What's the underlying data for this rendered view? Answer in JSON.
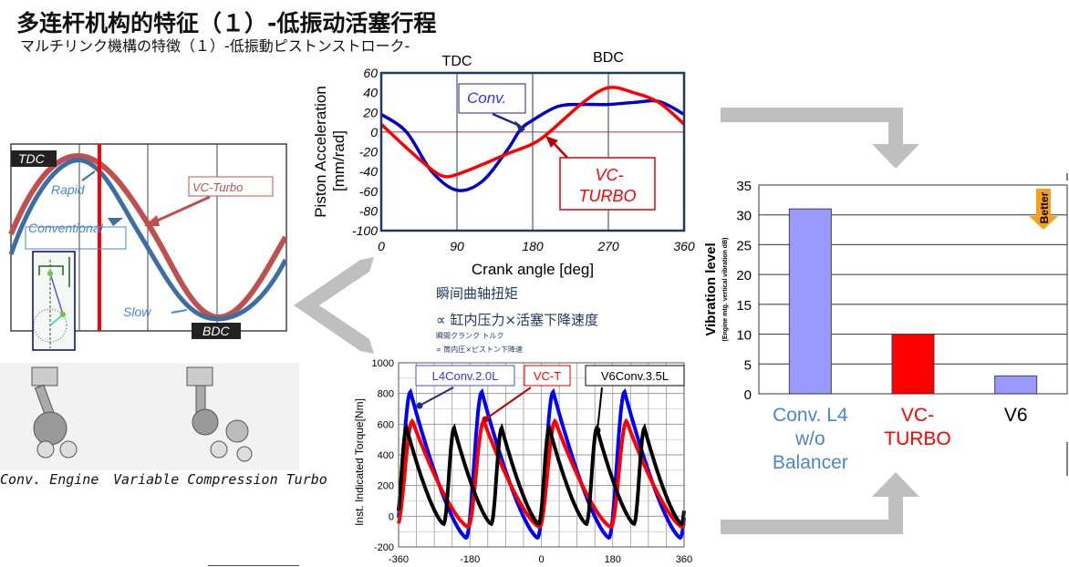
{
  "header": {
    "title": "多连杆机构的特征（１）-低振动活塞行程",
    "subtitle": "マルチリンク機構の特徴（１）-低振動ピストンストローク-"
  },
  "stroke_diagram": {
    "tdc_label": "TDC",
    "bdc_label": "BDC",
    "rapid_label": "Rapid",
    "slow_label": "Slow",
    "conventional_label": "Conventional",
    "vc_turbo_label": "VC-Turbo",
    "colors": {
      "conventional": "#3a6ea5",
      "vc_turbo": "#c0504d",
      "marker": "#ff0000"
    }
  },
  "engine_images": {
    "conv_caption": "Conv. Engine",
    "vc_caption": "Variable Compression Turbo"
  },
  "torque_note": {
    "line1": "瞬间曲轴扭矩",
    "line2": "∝ 缸内压力×活塞下降速度",
    "line3": "瞬間クランク トルク",
    "line4": "∝ 筒内圧×ピストン下降速"
  },
  "chart_data": [
    {
      "type": "line",
      "title": "",
      "xlabel": "Crank angle [deg]",
      "ylabel": "Piston Acceleration [mm/rad]",
      "xlim": [
        0,
        360
      ],
      "ylim": [
        -100,
        60
      ],
      "xticks": [
        "0",
        "90",
        "180",
        "270",
        "360"
      ],
      "yticks": [
        "60",
        "40",
        "20",
        "0",
        "-20",
        "-40",
        "-60",
        "-80",
        "-100"
      ],
      "top_labels": {
        "tdc": "TDC",
        "bdc": "BDC"
      },
      "series": [
        {
          "name": "Conv.",
          "color": "#0000cc",
          "x": [
            0,
            30,
            60,
            90,
            120,
            150,
            165,
            180,
            210,
            240,
            270,
            300,
            330,
            360
          ],
          "y": [
            18,
            0,
            -40,
            -59,
            -50,
            -18,
            2,
            12,
            26,
            28,
            28,
            30,
            31,
            18
          ]
        },
        {
          "name": "VC-TURBO",
          "color": "#ff0000",
          "x": [
            0,
            30,
            60,
            75,
            90,
            120,
            150,
            180,
            200,
            240,
            270,
            300,
            330,
            360
          ],
          "y": [
            8,
            -16,
            -38,
            -45,
            -43,
            -33,
            -22,
            -12,
            0,
            30,
            45,
            40,
            30,
            8
          ]
        }
      ],
      "legend": {
        "conv": "Conv.",
        "vc_line1": "VC-",
        "vc_line2": "TURBO"
      }
    },
    {
      "type": "line",
      "title": "",
      "xlabel": "",
      "ylabel": "Inst. Indicated Torque[Nm]",
      "xlim": [
        -360,
        360
      ],
      "ylim": [
        -200,
        1000
      ],
      "xticks": [
        "-360",
        "-180",
        "0",
        "180",
        "360"
      ],
      "yticks": [
        "1000",
        "800",
        "600",
        "400",
        "200",
        "0",
        "-200"
      ],
      "series": [
        {
          "name": "L4Conv.2.0L",
          "color": "#0000ff",
          "peak": 810,
          "min": -140,
          "period": 180,
          "first_peak_angle": -330
        },
        {
          "name": "VC-T",
          "color": "#ff0000",
          "peak": 620,
          "min": -70,
          "period": 180,
          "first_peak_angle": -325
        },
        {
          "name": "V6Conv.3.5L",
          "color": "#000000",
          "peak": 575,
          "min": -50,
          "period": 120,
          "first_peak_angle": -340
        }
      ]
    },
    {
      "type": "bar",
      "title": "",
      "xlabel": "",
      "ylabel": "Vibration level",
      "ylabel_sub": "(Engine mtg. vertical vibration dB)",
      "ylim": [
        0,
        35
      ],
      "yticks": [
        "35",
        "30",
        "25",
        "20",
        "15",
        "10",
        "5",
        "0"
      ],
      "categories": [
        "Conv. L4 w/o Balancer",
        "VC-TURBO",
        "V6"
      ],
      "category_lines": [
        [
          "Conv. L4",
          "w/o",
          "Balancer"
        ],
        [
          "VC-",
          "TURBO"
        ],
        [
          "V6"
        ]
      ],
      "category_colors": [
        "#4a86c8",
        "#ff0000",
        "#000000"
      ],
      "values": [
        31,
        10,
        3
      ],
      "bar_colors": [
        "#9999ff",
        "#ff0000",
        "#9999ff"
      ],
      "annotation": "Better"
    }
  ]
}
